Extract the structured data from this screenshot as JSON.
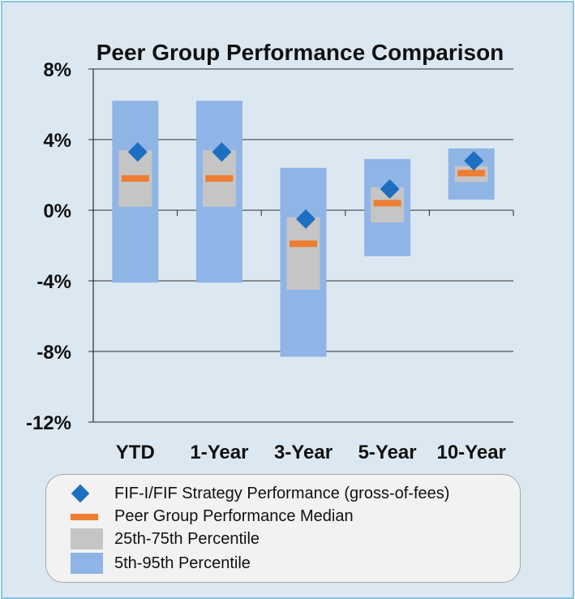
{
  "chart_data": {
    "type": "range-bar",
    "title": "Peer Group Performance Comparison",
    "categories": [
      "YTD",
      "1-Year",
      "3-Year",
      "5-Year",
      "10-Year"
    ],
    "ylim": [
      -12,
      8
    ],
    "yticks": [
      -12,
      -8,
      -4,
      0,
      4,
      8
    ],
    "ytick_labels": [
      "-12%",
      "-8%",
      "-4%",
      "0%",
      "4%",
      "8%"
    ],
    "grid": true,
    "series": [
      {
        "name": "5th-95th Percentile",
        "type": "range",
        "low": [
          -4.1,
          -4.1,
          -8.3,
          -2.6,
          0.6
        ],
        "high": [
          6.2,
          6.2,
          2.4,
          2.9,
          3.5
        ],
        "color": "#8fb4e6"
      },
      {
        "name": "25th-75th Percentile",
        "type": "range",
        "low": [
          0.2,
          0.2,
          -4.5,
          -0.7,
          1.6
        ],
        "high": [
          3.4,
          3.4,
          -0.4,
          1.3,
          2.5
        ],
        "color": "#c5c5c5"
      },
      {
        "name": "Peer Group Performance Median",
        "type": "marker",
        "values": [
          1.8,
          1.8,
          -1.9,
          0.4,
          2.1
        ],
        "color": "#ed7d31"
      },
      {
        "name": "FIF-I/FIF Strategy Performance (gross-of-fees)",
        "type": "marker",
        "values": [
          3.3,
          3.3,
          -0.5,
          1.2,
          2.8
        ],
        "color": "#1f6fc0"
      }
    ]
  },
  "legend": {
    "items": [
      {
        "label": "FIF-I/FIF Strategy Performance (gross-of-fees)",
        "symbol": "diamond-icon"
      },
      {
        "label": "Peer Group Performance Median",
        "symbol": "dash-icon"
      },
      {
        "label": "25th-75th Percentile",
        "symbol": "gray-box-icon"
      },
      {
        "label": "5th-95th Percentile",
        "symbol": "blue-box-icon"
      }
    ]
  }
}
